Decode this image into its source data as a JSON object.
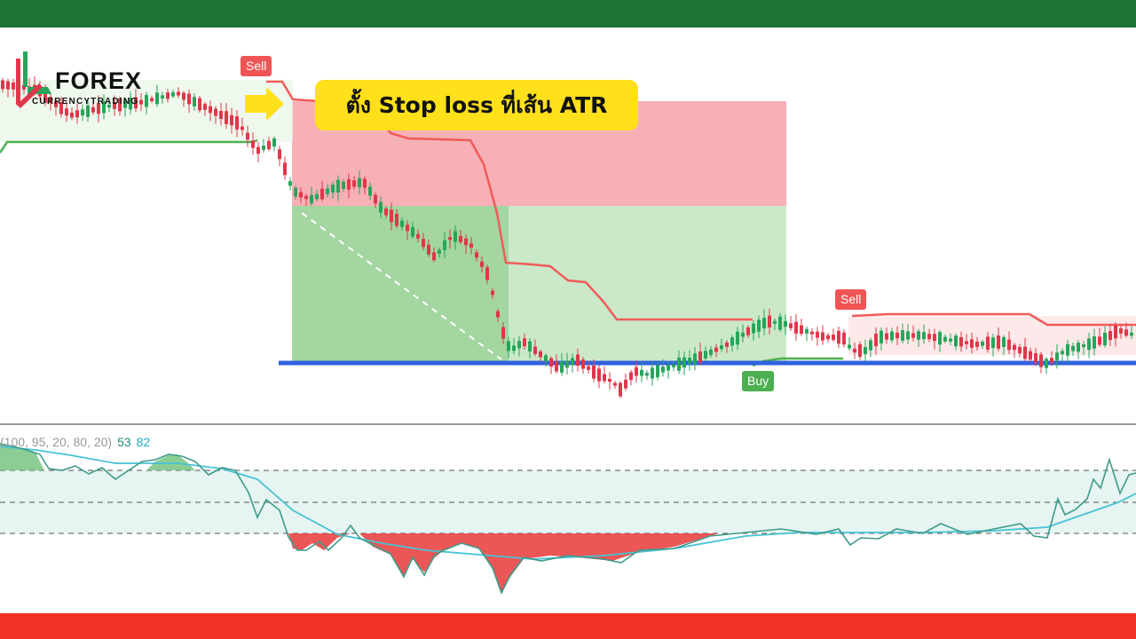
{
  "colors": {
    "header_bar": "#1e7235",
    "footer_bar": "#f23125",
    "callout_bg": "#ffe01a",
    "arrow": "#ffe01a",
    "up_candle": "#26a65b",
    "down_candle": "#e0374a",
    "atr_stop_line": "#f05b5b",
    "support_line": "#2f62e0",
    "stop_zone": "#f7a8ad",
    "target_zone": "#a8d9a4",
    "sell_tag": "#f05555",
    "buy_tag": "#4caf50",
    "osc_line": "#3d9b8a",
    "osc_signal": "#46c3d4"
  },
  "logo": {
    "word": "FOREX",
    "sub": "CURRENCYTRADING"
  },
  "callout": {
    "text": "ตั้ง Stop loss ที่เส้น ATR"
  },
  "tags": {
    "sell_1": "Sell",
    "sell_2": "Sell",
    "buy": "Buy"
  },
  "indicator": {
    "params": "(100, 95, 20, 80, 20)",
    "value_1": "53",
    "value_2": "82"
  },
  "chart_data": [
    {
      "type": "line",
      "title": "",
      "annotations": [
        "Sell",
        "Sell",
        "Buy"
      ],
      "grid": false,
      "y_axis_visible": false
    },
    {
      "type": "line",
      "title": "",
      "parameters": "(100, 95, 20, 80, 20)",
      "last_values": [
        "53",
        "82"
      ],
      "levels": [
        "upper",
        "mid",
        "lower"
      ],
      "grid": false
    }
  ]
}
